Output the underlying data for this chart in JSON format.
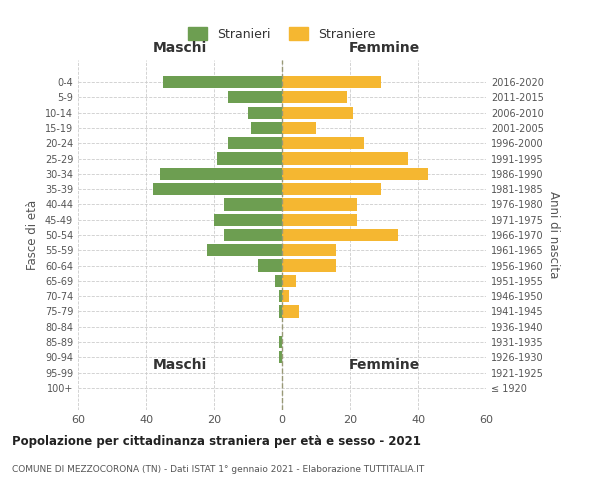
{
  "age_groups": [
    "100+",
    "95-99",
    "90-94",
    "85-89",
    "80-84",
    "75-79",
    "70-74",
    "65-69",
    "60-64",
    "55-59",
    "50-54",
    "45-49",
    "40-44",
    "35-39",
    "30-34",
    "25-29",
    "20-24",
    "15-19",
    "10-14",
    "5-9",
    "0-4"
  ],
  "birth_years": [
    "≤ 1920",
    "1921-1925",
    "1926-1930",
    "1931-1935",
    "1936-1940",
    "1941-1945",
    "1946-1950",
    "1951-1955",
    "1956-1960",
    "1961-1965",
    "1966-1970",
    "1971-1975",
    "1976-1980",
    "1981-1985",
    "1986-1990",
    "1991-1995",
    "1996-2000",
    "2001-2005",
    "2006-2010",
    "2011-2015",
    "2016-2020"
  ],
  "maschi": [
    0,
    0,
    1,
    1,
    0,
    1,
    1,
    2,
    7,
    22,
    17,
    20,
    17,
    38,
    36,
    19,
    16,
    9,
    10,
    16,
    35
  ],
  "femmine": [
    0,
    0,
    0,
    0,
    0,
    5,
    2,
    4,
    16,
    16,
    34,
    22,
    22,
    29,
    43,
    37,
    24,
    10,
    21,
    19,
    29
  ],
  "maschi_color": "#6d9e51",
  "femmine_color": "#f5b731",
  "background_color": "#ffffff",
  "grid_color": "#cccccc",
  "title": "Popolazione per cittadinanza straniera per età e sesso - 2021",
  "subtitle": "COMUNE DI MEZZOCORONA (TN) - Dati ISTAT 1° gennaio 2021 - Elaborazione TUTTITALIA.IT",
  "ylabel_left": "Fasce di età",
  "ylabel_right": "Anni di nascita",
  "xlabel_left": "Maschi",
  "xlabel_top_right": "Femmine",
  "legend_maschi": "Stranieri",
  "legend_femmine": "Straniere",
  "xlim": 60,
  "bar_height": 0.8
}
